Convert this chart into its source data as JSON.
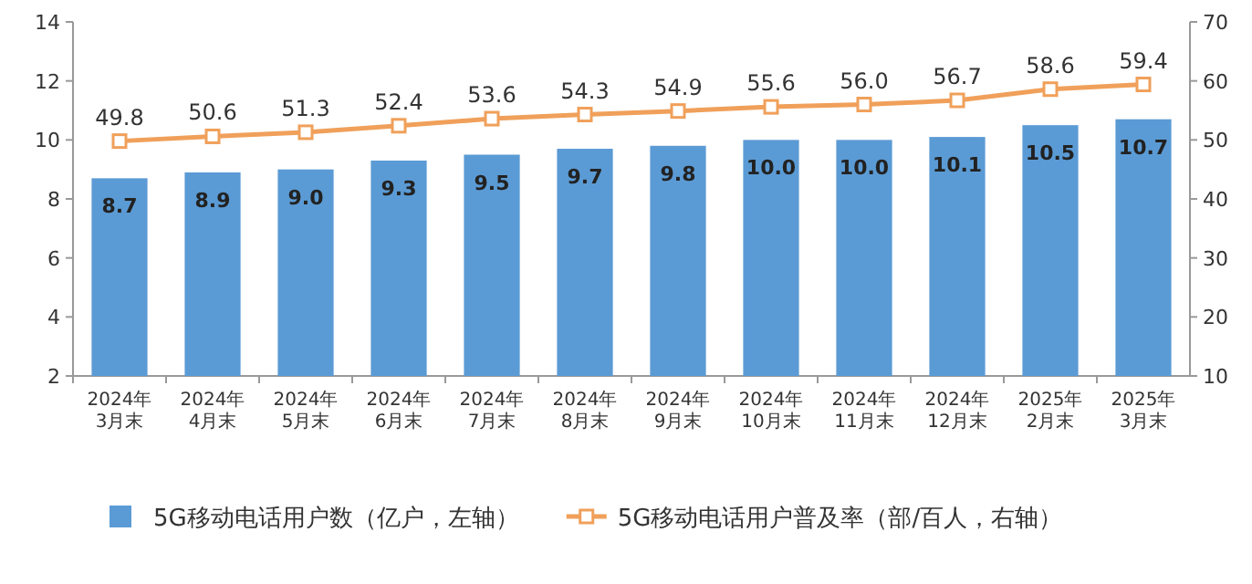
{
  "chart_data": {
    "type": "bar",
    "categories": [
      "2024年3月末",
      "2024年4月末",
      "2024年5月末",
      "2024年6月末",
      "2024年7月末",
      "2024年8月末",
      "2024年9月末",
      "2024年10月末",
      "2024年11月末",
      "2024年12月末",
      "2025年2月末",
      "2025年3月末"
    ],
    "series": [
      {
        "name": "5G移动电话用户数（亿户，左轴）",
        "color": "#5b9bd5",
        "values": [
          8.7,
          8.9,
          9.0,
          9.3,
          9.5,
          9.7,
          9.8,
          10.0,
          10.0,
          10.1,
          10.5,
          10.7
        ],
        "value_labels": [
          "8.7",
          "8.9",
          "9.0",
          "9.3",
          "9.5",
          "9.7",
          "9.8",
          "10.0",
          "10.0",
          "10.1",
          "10.5",
          "10.7"
        ]
      },
      {
        "name": "5G移动电话用户普及率（部/百人，右轴）",
        "type": "line",
        "axis": "y2",
        "marker": "square",
        "color": "#f0a05a",
        "values": [
          49.8,
          50.6,
          51.3,
          52.4,
          53.6,
          54.3,
          54.9,
          55.6,
          56.0,
          56.7,
          58.6,
          59.4
        ],
        "value_labels": [
          "49.8",
          "50.6",
          "51.3",
          "52.4",
          "53.6",
          "54.3",
          "54.9",
          "55.6",
          "56.0",
          "56.7",
          "58.6",
          "59.4"
        ]
      }
    ],
    "ylim": [
      2,
      14
    ],
    "yticks": [
      2,
      4,
      6,
      8,
      10,
      12,
      14
    ],
    "y2lim": [
      10,
      70
    ],
    "y2ticks": [
      10,
      20,
      30,
      40,
      50,
      60,
      70
    ],
    "legend": "bottom"
  }
}
